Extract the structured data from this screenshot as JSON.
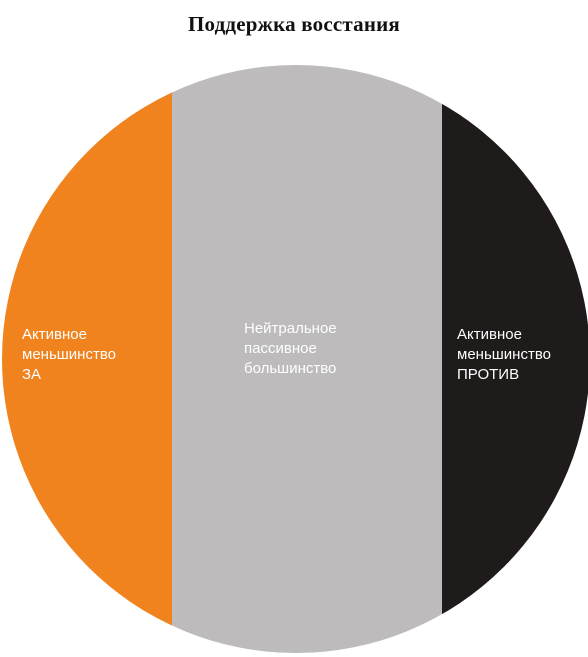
{
  "title": "Поддержка восстания",
  "segments": [
    {
      "id": "left",
      "lines": [
        "Активное",
        "меньшинство",
        "ЗА"
      ],
      "color": "#f0831e",
      "text_color": "#ffffff"
    },
    {
      "id": "middle",
      "lines": [
        "Нейтральное",
        "пассивное",
        "большинство"
      ],
      "color": "#bdbbbb",
      "text_color": "#ffffff"
    },
    {
      "id": "right",
      "lines": [
        "Активное",
        "меньшинство",
        "ПРОТИВ"
      ],
      "color": "#1e1b1a",
      "text_color": "#ffffff"
    }
  ]
}
